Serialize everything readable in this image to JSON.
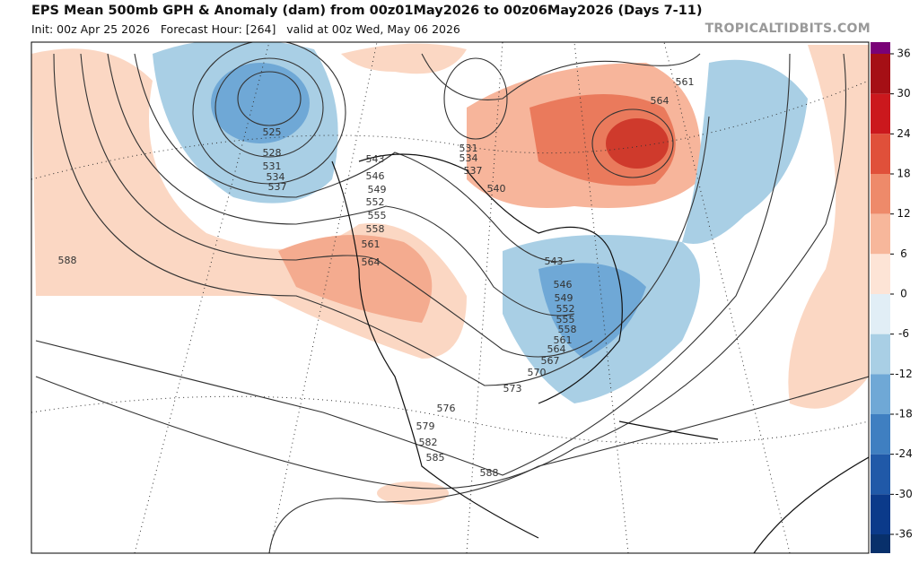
{
  "header": {
    "title": "EPS Mean 500mb GPH & Anomaly (dam) from 00z01May2026 to 00z06May2026 (Days 7-11)",
    "subtitle": "Init: 00z Apr 25 2026   Forecast Hour: [264]   valid at 00z Wed, May 06 2026",
    "watermark": "TROPICALTIDBITS.COM"
  },
  "colorbar": {
    "ticks": [
      36,
      30,
      24,
      18,
      12,
      6,
      0,
      -6,
      -12,
      -18,
      -24,
      -30,
      -36
    ],
    "colors": [
      "#a50f15",
      "#cb181d",
      "#e0503a",
      "#ee8a6a",
      "#f7b79b",
      "#fde4d6",
      "#e1eef6",
      "#a9cfe5",
      "#6fa8d6",
      "#3f7fc1",
      "#2059a8",
      "#0b3a8a"
    ]
  },
  "contour_labels": [
    525,
    528,
    531,
    534,
    537,
    543,
    546,
    549,
    552,
    555,
    558,
    561,
    564,
    588,
    531,
    534,
    537,
    540,
    543,
    546,
    549,
    552,
    555,
    558,
    561,
    564,
    567,
    570,
    573,
    576,
    579,
    582,
    585,
    588,
    561,
    564
  ]
}
